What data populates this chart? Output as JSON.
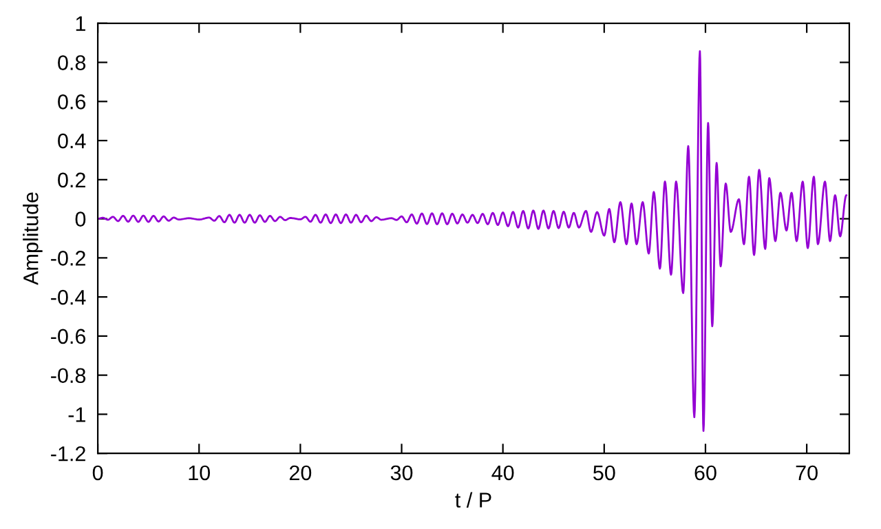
{
  "chart_data": {
    "type": "line",
    "xlabel": "t / P",
    "ylabel": "Amplitude",
    "xlim": [
      0,
      74.2
    ],
    "xticks": [
      0,
      10,
      20,
      30,
      40,
      50,
      60,
      70
    ],
    "ylim": [
      -1.2,
      1
    ],
    "yticks": [
      -1.2,
      -1,
      -0.8,
      -0.6,
      -0.4,
      -0.2,
      0,
      0.2,
      0.4,
      0.6,
      0.8,
      1
    ],
    "grid": false,
    "legend": false,
    "marker": "none",
    "line_style": "solid",
    "series": [
      {
        "color": "#9400d3",
        "x": [
          0,
          0.5,
          1,
          1.5,
          2,
          2.5,
          3,
          3.5,
          4,
          4.5,
          5,
          5.5,
          6,
          6.5,
          7,
          7.5,
          8,
          9,
          10,
          11,
          11.5,
          12,
          12.5,
          13,
          13.5,
          14,
          14.5,
          15,
          15.5,
          16,
          16.5,
          17,
          17.5,
          18,
          18.5,
          19,
          20,
          20.5,
          21,
          21.5,
          22,
          22.5,
          23,
          23.5,
          24,
          24.5,
          25,
          25.5,
          26,
          26.5,
          27,
          27.5,
          28,
          29,
          29.5,
          30,
          30.5,
          31,
          31.5,
          32,
          32.5,
          33,
          33.5,
          34,
          34.5,
          35,
          35.5,
          36,
          36.5,
          37,
          37.5,
          38,
          38.5,
          39,
          39.5,
          40,
          40.5,
          41,
          41.5,
          42,
          42.5,
          43,
          43.5,
          44,
          44.5,
          45,
          45.5,
          46,
          46.5,
          47,
          47.5,
          48.2,
          48.7,
          49.3,
          50,
          50.5,
          51,
          51.6,
          52.2,
          52.7,
          53.2,
          53.8,
          54.4,
          54.9,
          55.5,
          56.0,
          56.6,
          57.1,
          57.8,
          58.3,
          58.9,
          59.45,
          59.8,
          60.26,
          60.67,
          61.1,
          61.5,
          62.0,
          62.5,
          63.3,
          63.8,
          64.3,
          64.8,
          65.3,
          65.9,
          66.3,
          66.9,
          67.4,
          68.0,
          68.5,
          69.0,
          69.6,
          70.1,
          70.7,
          71.1,
          71.8,
          72.3,
          72.8,
          73.3,
          73.9
        ],
        "values": [
          0,
          0.005,
          -0.005,
          0.01,
          -0.012,
          0.015,
          -0.015,
          0.016,
          -0.016,
          0.016,
          -0.016,
          0.015,
          -0.014,
          0.012,
          -0.01,
          0.006,
          -0.004,
          0.003,
          -0.004,
          0.006,
          -0.01,
          0.014,
          -0.018,
          0.02,
          -0.02,
          0.02,
          -0.02,
          0.02,
          -0.02,
          0.018,
          -0.016,
          0.015,
          -0.012,
          0.01,
          -0.007,
          0.004,
          -0.003,
          0.01,
          -0.015,
          0.02,
          -0.02,
          0.022,
          -0.022,
          0.022,
          -0.022,
          0.022,
          -0.02,
          0.02,
          -0.018,
          0.016,
          -0.012,
          0.008,
          -0.005,
          0.003,
          -0.006,
          0.012,
          -0.018,
          0.022,
          -0.025,
          0.027,
          -0.027,
          0.028,
          -0.028,
          0.028,
          -0.028,
          0.026,
          -0.024,
          0.022,
          -0.02,
          0.02,
          -0.022,
          0.025,
          -0.028,
          0.03,
          -0.032,
          0.032,
          -0.038,
          0.035,
          -0.045,
          0.04,
          -0.05,
          0.042,
          -0.052,
          0.042,
          -0.05,
          0.04,
          -0.048,
          0.036,
          -0.045,
          0.03,
          -0.045,
          0.04,
          -0.067,
          0.034,
          -0.086,
          0.05,
          -0.12,
          0.085,
          -0.13,
          0.078,
          -0.13,
          0.085,
          -0.178,
          0.137,
          -0.255,
          0.19,
          -0.286,
          0.19,
          -0.38,
          0.372,
          -1.015,
          0.857,
          -1.085,
          0.49,
          -0.55,
          0.285,
          -0.243,
          0.18,
          -0.067,
          0.1,
          -0.13,
          0.215,
          -0.185,
          0.25,
          -0.154,
          0.208,
          -0.114,
          0.133,
          -0.06,
          0.133,
          -0.114,
          0.19,
          -0.15,
          0.215,
          -0.13,
          0.19,
          -0.114,
          0.12,
          -0.09,
          0.12
        ]
      }
    ]
  }
}
